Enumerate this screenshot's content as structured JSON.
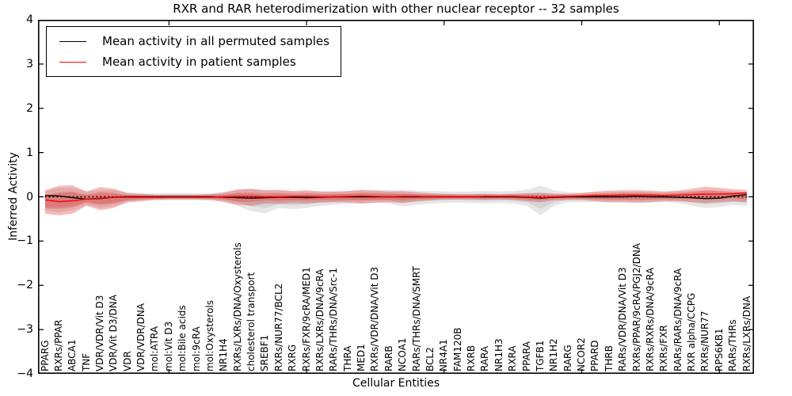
{
  "figure": {
    "title": "RXR and RAR heterodimerization with other nuclear receptor -- 32 samples",
    "xlabel": "Cellular Entities",
    "ylabel": "Inferred Activity"
  },
  "legend": {
    "items": [
      {
        "label": "Mean activity in all permuted samples",
        "color": "#000000"
      },
      {
        "label": "Mean activity in patient samples",
        "color": "#ff0000"
      }
    ]
  },
  "chart_data": {
    "type": "line",
    "title": "RXR and RAR heterodimerization with other nuclear receptor -- 32 samples",
    "xlabel": "Cellular Entities",
    "ylabel": "Inferred Activity",
    "ylim": [
      -4,
      4
    ],
    "ytick_values": [
      4,
      3,
      2,
      1,
      0,
      -1,
      -2,
      -3,
      -4
    ],
    "ytick_labels": [
      "4",
      "3",
      "2",
      "1",
      "0",
      "−1",
      "−2",
      "−3",
      "−4"
    ],
    "xtick_indices": [
      9,
      19,
      29,
      39,
      49
    ],
    "grid": false,
    "legend_position": "upper left",
    "zero_line": 0,
    "categories": [
      "PPARG",
      "RXRs/PPAR",
      "ABCA1",
      "TNF",
      "VDR/VDR/Vit D3",
      "VDR/Vit D3/DNA",
      "VDR",
      "VDR/VDR/DNA",
      "mol:ATRA",
      "mol:Vit D3",
      "mol:Bile acids",
      "mol:9cRA",
      "mol:Oxysterols",
      "NR1H4",
      "RXRs/LXRs/DNA/Oxysterols",
      "cholesterol transport",
      "SREBF1",
      "RXRs/NUR77/BCL2",
      "RXRG",
      "RXRs/FXR/9cRA/MED1",
      "RXRs/LXRs/DNA/9cRA",
      "RARs/THRs/DNA/Src-1",
      "THRA",
      "MED1",
      "RXRs/VDR/DNA/Vit D3",
      "RARB",
      "NCOA1",
      "RARs/THRs/DNA/SMRT",
      "BCL2",
      "NR4A1",
      "FAM120B",
      "RXRB",
      "RARA",
      "NR1H3",
      "RXRA",
      "PPARA",
      "TGFB1",
      "NR1H2",
      "RARG",
      "NCOR2",
      "PPARD",
      "THRB",
      "RARs/VDR/DNA/Vit D3",
      "RXRs/PPAR/9cRA/PGJ2/DNA",
      "RXRs/RXRs/DNA/9cRA",
      "RXRs/FXR",
      "RARs/RARs/DNA/9cRA",
      "RXR alpha/CCPG",
      "RXRs/NUR77",
      "RPS6KB1",
      "RARs/THRs",
      "RXRs/LXRs/DNA"
    ],
    "series": [
      {
        "name": "Mean activity in all permuted samples",
        "color": "#000000",
        "values": [
          0.03,
          0.02,
          -0.02,
          -0.05,
          -0.04,
          -0.01,
          0,
          0,
          0,
          0,
          0,
          0,
          0,
          -0.01,
          -0.02,
          -0.03,
          -0.02,
          -0.01,
          -0.01,
          -0.02,
          -0.01,
          0,
          0,
          0,
          0,
          0,
          0,
          0,
          0,
          0,
          0,
          0,
          0,
          0,
          0,
          -0.01,
          -0.03,
          -0.01,
          0,
          0,
          0,
          0,
          0,
          0.01,
          0,
          0,
          -0.01,
          -0.02,
          -0.04,
          -0.03,
          0.02,
          0.05
        ]
      },
      {
        "name": "Mean activity in patient samples",
        "color": "#ff0000",
        "values": [
          -0.07,
          -0.11,
          -0.09,
          -0.05,
          -0.03,
          -0.01,
          -0.01,
          -0.01,
          -0.01,
          -0.01,
          -0.01,
          -0.01,
          -0.01,
          0,
          0.01,
          0.01,
          0,
          0,
          0.01,
          0.01,
          0,
          0,
          0.01,
          0.02,
          0.01,
          0,
          0.01,
          0.01,
          0,
          0,
          0,
          0,
          0.01,
          0.01,
          0.01,
          0,
          -0.02,
          0,
          0.01,
          0.02,
          0.03,
          0.03,
          0.04,
          0.04,
          0.04,
          0.03,
          0.04,
          0.05,
          0.06,
          0.06,
          0.07,
          0.09
        ]
      }
    ],
    "bands": [
      {
        "name": "permuted-range",
        "color": "rgba(130,130,130,0.20)",
        "inner_color": "rgba(130,130,130,0.18)",
        "lo": [
          -0.3,
          -0.35,
          -0.3,
          -0.18,
          -0.25,
          -0.2,
          -0.12,
          -0.08,
          -0.08,
          -0.08,
          -0.08,
          -0.08,
          -0.08,
          -0.1,
          -0.2,
          -0.33,
          -0.37,
          -0.25,
          -0.28,
          -0.25,
          -0.2,
          -0.18,
          -0.15,
          -0.15,
          -0.14,
          -0.15,
          -0.22,
          -0.18,
          -0.15,
          -0.14,
          -0.13,
          -0.14,
          -0.15,
          -0.14,
          -0.15,
          -0.2,
          -0.42,
          -0.2,
          -0.12,
          -0.12,
          -0.12,
          -0.13,
          -0.13,
          -0.14,
          -0.13,
          -0.12,
          -0.14,
          -0.2,
          -0.25,
          -0.23,
          -0.18,
          -0.2
        ],
        "hi": [
          0.12,
          0.2,
          0.2,
          0.12,
          0.15,
          0.15,
          0.1,
          0.08,
          0.08,
          0.08,
          0.08,
          0.08,
          0.08,
          0.1,
          0.15,
          0.18,
          0.15,
          0.14,
          0.12,
          0.12,
          0.12,
          0.12,
          0.13,
          0.15,
          0.15,
          0.16,
          0.15,
          0.14,
          0.13,
          0.12,
          0.12,
          0.12,
          0.13,
          0.12,
          0.13,
          0.16,
          0.25,
          0.15,
          0.1,
          0.1,
          0.1,
          0.11,
          0.11,
          0.12,
          0.11,
          0.11,
          0.12,
          0.13,
          0.14,
          0.13,
          0.12,
          0.1
        ]
      },
      {
        "name": "patient-range",
        "color": "rgba(225,45,45,0.33)",
        "inner_color": "rgba(225,45,45,0.30)",
        "lo": [
          -0.38,
          -0.42,
          -0.38,
          -0.2,
          -0.3,
          -0.25,
          -0.12,
          -0.1,
          -0.07,
          -0.06,
          -0.06,
          -0.06,
          -0.07,
          -0.12,
          -0.18,
          -0.2,
          -0.15,
          -0.16,
          -0.14,
          -0.15,
          -0.13,
          -0.12,
          -0.13,
          -0.15,
          -0.13,
          -0.12,
          -0.14,
          -0.1,
          -0.08,
          -0.06,
          -0.06,
          -0.06,
          -0.07,
          -0.06,
          -0.07,
          -0.1,
          -0.12,
          -0.08,
          -0.07,
          -0.07,
          -0.1,
          -0.12,
          -0.12,
          -0.13,
          -0.12,
          -0.1,
          -0.1,
          -0.12,
          -0.14,
          -0.12,
          -0.1,
          -0.12
        ],
        "hi": [
          0.15,
          0.25,
          0.26,
          0.12,
          0.22,
          0.18,
          0.08,
          0.07,
          0.05,
          0.05,
          0.05,
          0.05,
          0.06,
          0.1,
          0.17,
          0.18,
          0.15,
          0.16,
          0.13,
          0.15,
          0.12,
          0.12,
          0.13,
          0.16,
          0.14,
          0.12,
          0.13,
          0.1,
          0.08,
          0.07,
          0.06,
          0.06,
          0.07,
          0.06,
          0.07,
          0.08,
          0.09,
          0.07,
          0.07,
          0.08,
          0.12,
          0.14,
          0.15,
          0.15,
          0.14,
          0.12,
          0.14,
          0.18,
          0.23,
          0.2,
          0.17,
          0.16
        ]
      }
    ]
  }
}
